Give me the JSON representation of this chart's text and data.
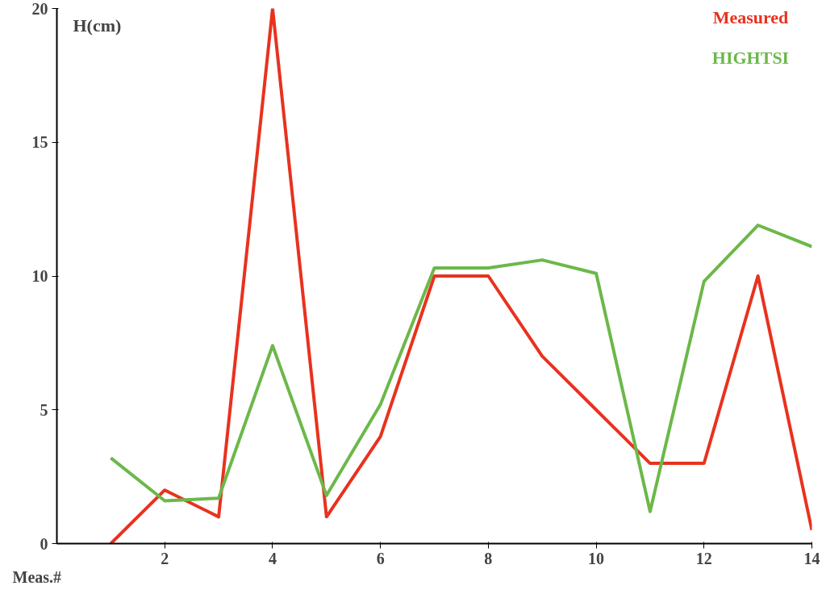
{
  "chart_data": {
    "type": "line",
    "xlabel": "Meas.#",
    "ylabel": "H(cm)",
    "x": [
      1,
      2,
      3,
      4,
      5,
      6,
      7,
      8,
      9,
      10,
      11,
      12,
      13,
      14
    ],
    "series": [
      {
        "name": "Measured",
        "color": "#e8321e",
        "values": [
          0,
          2,
          1,
          20,
          1,
          4,
          10,
          10,
          7,
          5,
          3,
          3,
          10,
          0.5
        ]
      },
      {
        "name": "HIGHTSI",
        "color": "#6cb84a",
        "values": [
          3.2,
          1.6,
          1.7,
          7.4,
          1.8,
          5.2,
          10.3,
          10.3,
          10.6,
          10.1,
          1.2,
          9.8,
          11.9,
          11.1
        ]
      }
    ],
    "xlim": [
      0,
      14
    ],
    "ylim": [
      0,
      20
    ],
    "xticks": [
      2,
      4,
      6,
      8,
      10,
      12,
      14
    ],
    "yticks": [
      0,
      5,
      10,
      15,
      20
    ],
    "grid": false,
    "legend": "top right",
    "marker": "none",
    "line_style": "solid"
  }
}
